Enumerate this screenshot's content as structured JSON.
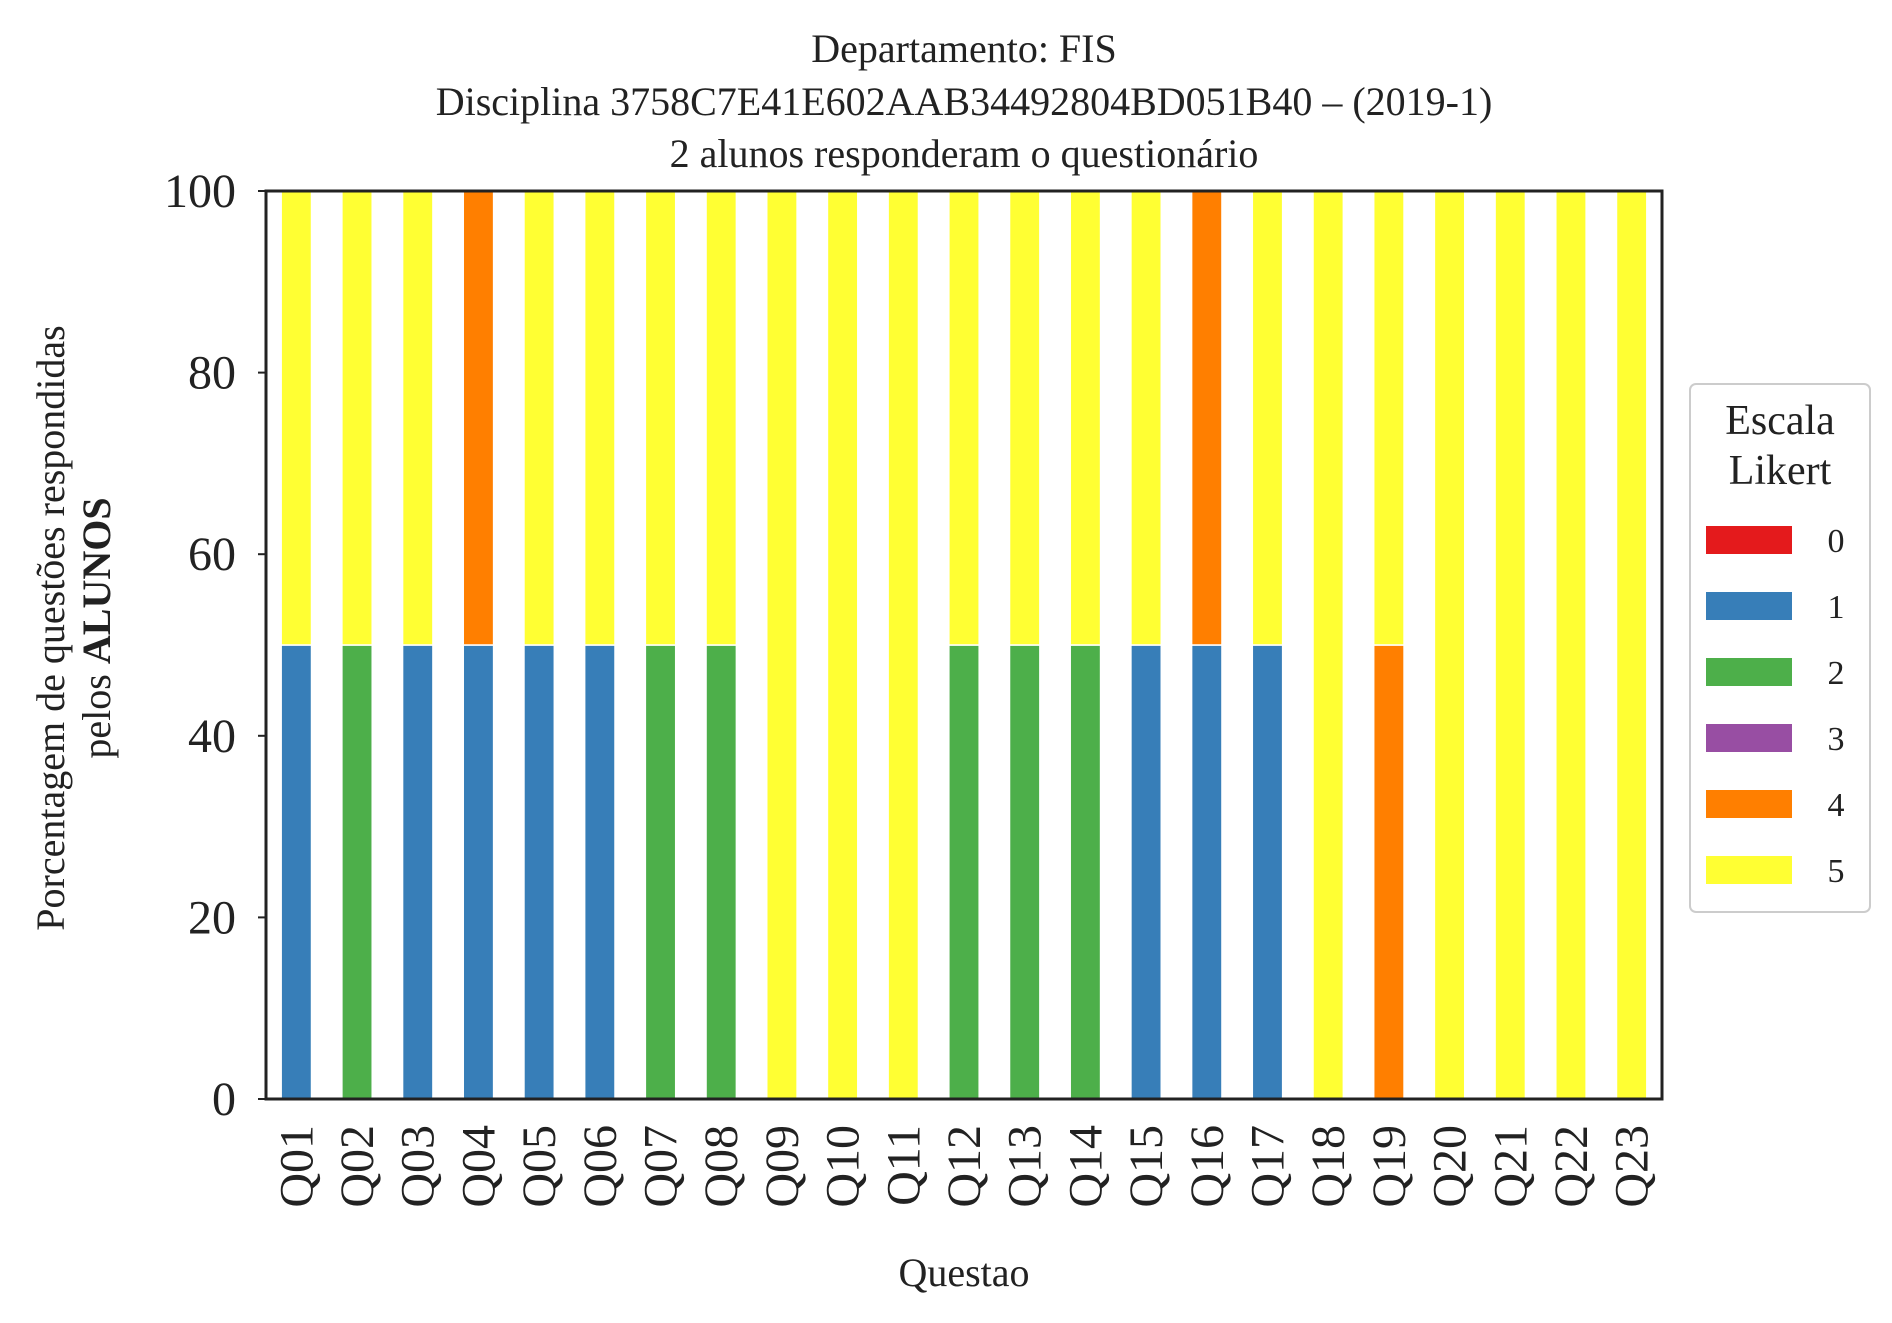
{
  "chart_data": {
    "type": "bar",
    "stacked": true,
    "title_lines": [
      "Departamento: FIS",
      "Disciplina 3758C7E41E602AAB34492804BD051B40 – (2019-1)",
      "2 alunos responderam o questionário"
    ],
    "xlabel": "Questao",
    "ylabel_line1": "Porcentagem de questões respondidas",
    "ylabel_line2_prefix": "pelos ",
    "ylabel_line2_bold": "ALUNOS",
    "ylim": [
      0,
      100
    ],
    "yticks": [
      0,
      20,
      40,
      60,
      80,
      100
    ],
    "grid": false,
    "categories": [
      "Q01",
      "Q02",
      "Q03",
      "Q04",
      "Q05",
      "Q06",
      "Q07",
      "Q08",
      "Q09",
      "Q10",
      "Q11",
      "Q12",
      "Q13",
      "Q14",
      "Q15",
      "Q16",
      "Q17",
      "Q18",
      "Q19",
      "Q20",
      "Q21",
      "Q22",
      "Q23"
    ],
    "series": [
      {
        "name": "0",
        "color": "#e41a1c",
        "values": [
          0,
          0,
          0,
          0,
          0,
          0,
          0,
          0,
          0,
          0,
          0,
          0,
          0,
          0,
          0,
          0,
          0,
          0,
          0,
          0,
          0,
          0,
          0
        ]
      },
      {
        "name": "1",
        "color": "#377eb8",
        "values": [
          50,
          0,
          50,
          50,
          50,
          50,
          0,
          0,
          0,
          0,
          0,
          0,
          0,
          0,
          50,
          50,
          50,
          0,
          0,
          0,
          0,
          0,
          0
        ]
      },
      {
        "name": "2",
        "color": "#4daf4a",
        "values": [
          0,
          50,
          0,
          0,
          0,
          0,
          50,
          50,
          0,
          0,
          0,
          50,
          50,
          50,
          0,
          0,
          0,
          0,
          0,
          0,
          0,
          0,
          0
        ]
      },
      {
        "name": "3",
        "color": "#984ea3",
        "values": [
          0,
          0,
          0,
          0,
          0,
          0,
          0,
          0,
          0,
          0,
          0,
          0,
          0,
          0,
          0,
          0,
          0,
          0,
          0,
          0,
          0,
          0,
          0
        ]
      },
      {
        "name": "4",
        "color": "#ff7f00",
        "values": [
          0,
          0,
          0,
          50,
          0,
          0,
          0,
          0,
          0,
          0,
          0,
          0,
          0,
          0,
          0,
          50,
          0,
          0,
          50,
          0,
          0,
          0,
          0
        ]
      },
      {
        "name": "5",
        "color": "#ffff33",
        "values": [
          50,
          50,
          50,
          0,
          50,
          50,
          50,
          50,
          100,
          100,
          100,
          50,
          50,
          50,
          50,
          0,
          50,
          100,
          50,
          100,
          100,
          100,
          100
        ]
      }
    ],
    "legend": {
      "title_lines": [
        "Escala",
        "Likert"
      ],
      "placement": "center-right-outside"
    }
  }
}
